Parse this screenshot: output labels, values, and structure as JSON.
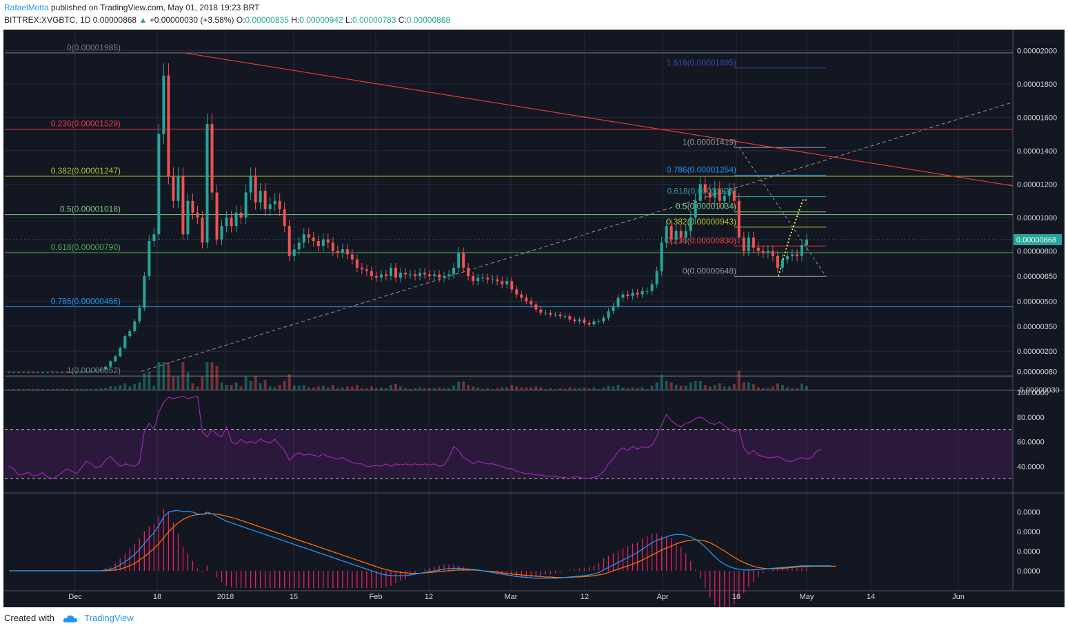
{
  "header": {
    "author": "RafaelMotta",
    "published_text": "published on TradingView.com, May 01, 2018 19:23 BRT",
    "symbol": "BITTREX:XVGBTC, 1D",
    "last": "0.00000868",
    "change": "+0.00000030 (+3.58%)",
    "open_label": "O:",
    "open": "0.00000835",
    "high_label": "H:",
    "high": "0.00000942",
    "low_label": "L:",
    "low": "0.00000783",
    "close_label": "C:",
    "close": "0.00000868"
  },
  "footer": {
    "created_with": "Created with",
    "brand": "TradingView"
  },
  "colors": {
    "background": "#131722",
    "up": "#26a69a",
    "down": "#ef5350",
    "rsi": "#9c27b0",
    "macd": "#2196f3",
    "signal": "#ff6d00"
  },
  "chart_data": {
    "type": "candlestick",
    "symbol": "BITTREX:XVGBTC",
    "interval": "1D",
    "x_ticks": [
      "Dec",
      "18",
      "2018",
      "15",
      "Feb",
      "12",
      "Mar",
      "12",
      "Apr",
      "16",
      "May",
      "14",
      "Jun"
    ],
    "price_axis_ticks": [
      "0.00002000",
      "0.00001800",
      "0.00001600",
      "0.00001400",
      "0.00001200",
      "0.00001000",
      "0.00000800",
      "0.00000650",
      "0.00000500",
      "0.00000350",
      "0.00000200",
      "0.00000080",
      "-0.00000030"
    ],
    "last_price_label": "0.00000868",
    "candles_close": [
      7.5e-07,
      7.5e-07,
      7.4e-07,
      7.5e-07,
      7.3e-07,
      7.2e-07,
      7.3e-07,
      7.4e-07,
      7.4e-07,
      7.5e-07,
      7.3e-07,
      7.6e-07,
      7.5e-07,
      7.4e-07,
      7.7e-07,
      7.8e-07,
      7.9e-07,
      8.1e-07,
      8.6e-07,
      9.2e-07,
      1.08e-06,
      1.4e-06,
      1.7e-06,
      2.2e-06,
      2.9e-06,
      3.2e-06,
      3.8e-06,
      4.6e-06,
      6.5e-06,
      8.6e-06,
      9e-06,
      1.5e-05,
      1.85e-05,
      1.25e-05,
      1.1e-05,
      1.25e-05,
      9e-06,
      1.1e-05,
      1.03e-05,
      1e-05,
      8.5e-06,
      1.56e-05,
      1.15e-05,
      8.7e-06,
      9.5e-06,
      1e-05,
      9.5e-06,
      1.03e-05,
      1e-05,
      1.15e-05,
      1.25e-05,
      1.09e-05,
      1.16e-05,
      1.05e-05,
      1.08e-05,
      1.1e-05,
      1.05e-05,
      9.5e-06,
      7.7e-06,
      8.1e-06,
      8.5e-06,
      9e-06,
      8.8e-06,
      8.6e-06,
      8.3e-06,
      8.7e-06,
      8.5e-06,
      8e-06,
      7.9e-06,
      8.1e-06,
      7.8e-06,
      7.5e-06,
      7e-06,
      6.9e-06,
      6.8e-06,
      6.5e-06,
      6.4e-06,
      6.6e-06,
      6.5e-06,
      7e-06,
      6.4e-06,
      6.7e-06,
      6.6e-06,
      6.6e-06,
      6.5e-06,
      6.7e-06,
      6.6e-06,
      6.5e-06,
      6.6e-06,
      6.4e-06,
      6.5e-06,
      6.6e-06,
      7e-06,
      7.9e-06,
      7e-06,
      6.5e-06,
      6.2e-06,
      6.4e-06,
      6.4e-06,
      6.3e-06,
      6.3e-06,
      6.2e-06,
      6e-06,
      6.2e-06,
      5.7e-06,
      5.4e-06,
      5.2e-06,
      5e-06,
      4.8e-06,
      4.5e-06,
      4.3e-06,
      4.3e-06,
      4.2e-06,
      4.2e-06,
      4.1e-06,
      4.1e-06,
      3.9e-06,
      3.8e-06,
      3.9e-06,
      3.7e-06,
      3.6e-06,
      3.8e-06,
      3.8e-06,
      4e-06,
      4.4e-06,
      4.7e-06,
      5.2e-06,
      5.4e-06,
      5.3e-06,
      5.5e-06,
      5.4e-06,
      5.6e-06,
      5.6e-06,
      6e-06,
      6.8e-06,
      8.5e-06,
      9.5e-06,
      8.7e-06,
      9.2e-06,
      8.8e-06,
      9.2e-06,
      1e-05,
      1.1e-05,
      1.2e-05,
      1.15e-05,
      1.12e-05,
      1.17e-05,
      1.1e-05,
      1.13e-05,
      1.16e-05,
      1.1e-05,
      8.8e-06,
      8e-06,
      8.8e-06,
      8.2e-06,
      8e-06,
      7.9e-06,
      8e-06,
      7.7e-06,
      7e-06,
      7.5e-06,
      7.7e-06,
      7.8e-06,
      7.7e-06,
      8.35e-06,
      8.68e-06
    ],
    "fibonacci_major": [
      {
        "label": "0(0.00001985)",
        "value": 1.985e-05
      },
      {
        "label": "0.236(0.00001529)",
        "value": 1.529e-05
      },
      {
        "label": "0.382(0.00001247)",
        "value": 1.247e-05
      },
      {
        "label": "0.5(0.00001018)",
        "value": 1.018e-05
      },
      {
        "label": "0.618(0.00000790)",
        "value": 7.9e-06
      },
      {
        "label": "0.786(0.00000466)",
        "value": 4.66e-06
      },
      {
        "label": "1(0.00000052)",
        "value": 5.2e-07
      }
    ],
    "fibonacci_minor": [
      {
        "label": "1.618(0.00001895)",
        "value": 1.895e-05
      },
      {
        "label": "1(0.00001419)",
        "value": 1.419e-05
      },
      {
        "label": "0.786(0.00001254)",
        "value": 1.254e-05
      },
      {
        "label": "0.618(0.00001125)",
        "value": 1.125e-05
      },
      {
        "label": "0.5(0.00001034)",
        "value": 1.034e-05
      },
      {
        "label": "0.382(0.00000943)",
        "value": 9.43e-06
      },
      {
        "label": "0.236(0.00000830)",
        "value": 8.3e-06
      },
      {
        "label": "0(0.00000648)",
        "value": 6.48e-06
      }
    ],
    "rsi": {
      "axis_ticks": [
        "100.0000",
        "80.0000",
        "60.0000",
        "40.0000"
      ],
      "band": [
        30,
        70
      ],
      "values": [
        40,
        38,
        33,
        34,
        35,
        32,
        33,
        35,
        31,
        30,
        32,
        35,
        38,
        36,
        34,
        39,
        44,
        42,
        39,
        40,
        45,
        48,
        44,
        40,
        42,
        41,
        40,
        43,
        68,
        75,
        70,
        84,
        92,
        96,
        95,
        96,
        97,
        95,
        96,
        97,
        68,
        64,
        70,
        66,
        64,
        72,
        60,
        58,
        62,
        59,
        60,
        59,
        62,
        60,
        59,
        62,
        57,
        53,
        45,
        49,
        51,
        49,
        50,
        49,
        48,
        50,
        48,
        47,
        46,
        47,
        45,
        43,
        42,
        42,
        40,
        40,
        41,
        40,
        42,
        40,
        42,
        41,
        42,
        41,
        42,
        41,
        42,
        41,
        42,
        40,
        41,
        47,
        56,
        53,
        47,
        45,
        42,
        44,
        43,
        42,
        42,
        41,
        40,
        38,
        38,
        36,
        35,
        34,
        34,
        33,
        33,
        32,
        32,
        32,
        31,
        31,
        30,
        32,
        31,
        30,
        30,
        31,
        32,
        36,
        42,
        46,
        52,
        55,
        53,
        56,
        54,
        56,
        55,
        57,
        64,
        74,
        82,
        77,
        74,
        72,
        75,
        76,
        79,
        80,
        78,
        75,
        74,
        76,
        73,
        70,
        68,
        70,
        55,
        50,
        53,
        49,
        48,
        47,
        47,
        48,
        46,
        44,
        44,
        46,
        47,
        46,
        47,
        52,
        54
      ]
    },
    "macd": {
      "axis_ticks": [
        "0.0000",
        "0.0000",
        "0.0000",
        "0.0000"
      ],
      "macd": [
        0,
        0,
        0,
        0,
        0,
        0,
        0,
        0,
        0,
        0,
        0,
        0,
        0,
        0,
        0,
        0,
        0,
        0,
        0,
        0,
        0.02,
        0.04,
        0.08,
        0.14,
        0.22,
        0.3,
        0.4,
        0.52,
        0.66,
        0.8,
        0.92,
        1.1,
        1.3,
        1.42,
        1.45,
        1.46,
        1.43,
        1.44,
        1.42,
        1.38,
        1.36,
        1.42,
        1.38,
        1.32,
        1.26,
        1.2,
        1.16,
        1.12,
        1.08,
        1.04,
        1.0,
        0.96,
        0.92,
        0.88,
        0.84,
        0.8,
        0.76,
        0.72,
        0.68,
        0.64,
        0.6,
        0.56,
        0.52,
        0.48,
        0.44,
        0.4,
        0.36,
        0.32,
        0.28,
        0.24,
        0.2,
        0.16,
        0.12,
        0.08,
        0.04,
        0.0,
        -0.04,
        -0.08,
        -0.1,
        -0.12,
        -0.12,
        -0.12,
        -0.12,
        -0.1,
        -0.08,
        -0.06,
        -0.04,
        -0.02,
        0.0,
        0.02,
        0.04,
        0.05,
        0.06,
        0.06,
        0.05,
        0.04,
        0.03,
        0.02,
        0.0,
        -0.02,
        -0.04,
        -0.06,
        -0.08,
        -0.1,
        -0.12,
        -0.14,
        -0.15,
        -0.16,
        -0.17,
        -0.18,
        -0.18,
        -0.18,
        -0.18,
        -0.18,
        -0.17,
        -0.16,
        -0.15,
        -0.14,
        -0.13,
        -0.12,
        -0.1,
        -0.08,
        -0.04,
        0.02,
        0.08,
        0.14,
        0.2,
        0.26,
        0.32,
        0.38,
        0.44,
        0.52,
        0.6,
        0.68,
        0.74,
        0.78,
        0.82,
        0.86,
        0.88,
        0.88,
        0.86,
        0.82,
        0.76,
        0.68,
        0.58,
        0.46,
        0.34,
        0.24,
        0.16,
        0.1,
        0.06,
        0.04,
        0.02,
        0.02,
        0.02,
        0.03,
        0.04,
        0.05,
        0.06,
        0.07,
        0.08,
        0.09,
        0.1,
        0.11,
        0.12,
        0.12,
        0.12,
        0.12,
        0.12,
        0.12,
        0.12
      ],
      "signal": [
        0,
        0,
        0,
        0,
        0,
        0,
        0,
        0,
        0,
        0,
        0,
        0,
        0,
        0,
        0,
        0,
        0,
        0,
        0,
        0,
        0.0,
        0.01,
        0.02,
        0.04,
        0.08,
        0.12,
        0.18,
        0.26,
        0.34,
        0.44,
        0.54,
        0.66,
        0.8,
        0.94,
        1.06,
        1.16,
        1.24,
        1.3,
        1.34,
        1.36,
        1.37,
        1.38,
        1.38,
        1.37,
        1.35,
        1.32,
        1.29,
        1.26,
        1.22,
        1.18,
        1.14,
        1.1,
        1.06,
        1.02,
        0.98,
        0.94,
        0.9,
        0.86,
        0.82,
        0.78,
        0.74,
        0.7,
        0.66,
        0.62,
        0.58,
        0.54,
        0.5,
        0.46,
        0.42,
        0.38,
        0.34,
        0.3,
        0.26,
        0.22,
        0.18,
        0.14,
        0.1,
        0.06,
        0.03,
        0.0,
        -0.02,
        -0.04,
        -0.05,
        -0.06,
        -0.06,
        -0.06,
        -0.05,
        -0.04,
        -0.03,
        -0.02,
        -0.01,
        0.0,
        0.01,
        0.02,
        0.02,
        0.02,
        0.02,
        0.01,
        0.0,
        -0.01,
        -0.02,
        -0.03,
        -0.05,
        -0.06,
        -0.08,
        -0.09,
        -0.1,
        -0.11,
        -0.12,
        -0.13,
        -0.14,
        -0.15,
        -0.15,
        -0.16,
        -0.16,
        -0.16,
        -0.16,
        -0.15,
        -0.15,
        -0.14,
        -0.13,
        -0.12,
        -0.1,
        -0.08,
        -0.04,
        0.0,
        0.04,
        0.08,
        0.12,
        0.16,
        0.21,
        0.26,
        0.32,
        0.38,
        0.44,
        0.5,
        0.55,
        0.6,
        0.65,
        0.69,
        0.72,
        0.74,
        0.75,
        0.74,
        0.72,
        0.68,
        0.62,
        0.55,
        0.48,
        0.4,
        0.33,
        0.26,
        0.2,
        0.15,
        0.11,
        0.08,
        0.06,
        0.05,
        0.05,
        0.05,
        0.06,
        0.07,
        0.08,
        0.09,
        0.1,
        0.1,
        0.11,
        0.11,
        0.11,
        0.11,
        0.11,
        0.11
      ]
    },
    "grid": true,
    "legend": "none"
  }
}
